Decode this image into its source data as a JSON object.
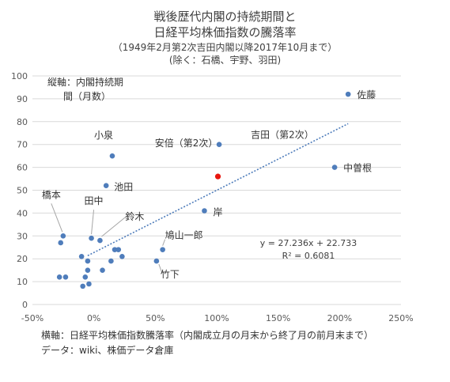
{
  "title_lines": [
    "戦後歴代内閣の持続期間と",
    "日経平均株価指数の騰落率",
    "（1949年2月第2次吉田内閣以降2017年10月まで）",
    "(除く：石橋、宇野、羽田)"
  ],
  "ylabel_lines": [
    "縦軸：内閣持続期",
    "間（月数）"
  ],
  "xlabel": "横軸：日経平均株価指数騰落率（内閣成立月の月末から終了月の前月末まで）",
  "source": "データ：wiki、株価データ倉庫",
  "colors": {
    "point": "#4f7dbb",
    "highlight": "#e8170f",
    "trend": "#4f7dbb",
    "grid": "#d9d9d9"
  },
  "chart_data": {
    "type": "scatter",
    "xlim": [
      -0.5,
      2.5
    ],
    "ylim": [
      0,
      100
    ],
    "x_ticks": [
      -0.5,
      0,
      0.5,
      1,
      1.5,
      2,
      2.5
    ],
    "x_tick_labels": [
      "-50%",
      "0%",
      "50%",
      "100%",
      "150%",
      "200%",
      "250%"
    ],
    "y_ticks": [
      0,
      10,
      20,
      30,
      40,
      50,
      60,
      70,
      80,
      90,
      100
    ],
    "y_tick_labels": [
      "0",
      "10",
      "20",
      "30",
      "40",
      "50",
      "60",
      "70",
      "80",
      "90",
      "100"
    ],
    "grid": "horizontal",
    "points": [
      {
        "x": 2.07,
        "y": 92,
        "label": "佐藤",
        "highlight": false
      },
      {
        "x": 1.02,
        "y": 70,
        "label": "吉田（第2次）",
        "highlight": false
      },
      {
        "x": 1.96,
        "y": 60,
        "label": "中曽根",
        "highlight": false
      },
      {
        "x": 1.01,
        "y": 56,
        "label": "安倍（第2次）",
        "highlight": true
      },
      {
        "x": 0.15,
        "y": 65,
        "label": "小泉",
        "highlight": false
      },
      {
        "x": 0.1,
        "y": 52,
        "label": "池田",
        "highlight": false
      },
      {
        "x": 0.9,
        "y": 41,
        "label": "岸",
        "highlight": false
      },
      {
        "x": -0.25,
        "y": 30,
        "label": "橋本",
        "highlight": false
      },
      {
        "x": -0.02,
        "y": 29,
        "label": "田中",
        "highlight": false
      },
      {
        "x": 0.05,
        "y": 28,
        "label": "鈴木",
        "highlight": false
      },
      {
        "x": 0.56,
        "y": 24,
        "label": "鳩山一郎",
        "highlight": false
      },
      {
        "x": 0.51,
        "y": 19,
        "label": "竹下",
        "highlight": false
      },
      {
        "x": -0.27,
        "y": 27,
        "label": "",
        "highlight": false
      },
      {
        "x": -0.28,
        "y": 12,
        "label": "",
        "highlight": false
      },
      {
        "x": -0.23,
        "y": 12,
        "label": "",
        "highlight": false
      },
      {
        "x": -0.1,
        "y": 21,
        "label": "",
        "highlight": false
      },
      {
        "x": -0.05,
        "y": 19,
        "label": "",
        "highlight": false
      },
      {
        "x": -0.05,
        "y": 15,
        "label": "",
        "highlight": false
      },
      {
        "x": -0.07,
        "y": 12,
        "label": "",
        "highlight": false
      },
      {
        "x": -0.09,
        "y": 8,
        "label": "",
        "highlight": false
      },
      {
        "x": -0.04,
        "y": 9,
        "label": "",
        "highlight": false
      },
      {
        "x": 0.07,
        "y": 15,
        "label": "",
        "highlight": false
      },
      {
        "x": 0.14,
        "y": 19,
        "label": "",
        "highlight": false
      },
      {
        "x": 0.17,
        "y": 24,
        "label": "",
        "highlight": false
      },
      {
        "x": 0.2,
        "y": 24,
        "label": "",
        "highlight": false
      },
      {
        "x": 0.23,
        "y": 21,
        "label": "",
        "highlight": false
      }
    ],
    "trendline": {
      "slope": 27.236,
      "intercept": 22.733,
      "x_range": [
        -0.05,
        2.07
      ]
    },
    "equation_lines": [
      "y = 27.236x + 22.733",
      "R² = 0.6081"
    ]
  }
}
